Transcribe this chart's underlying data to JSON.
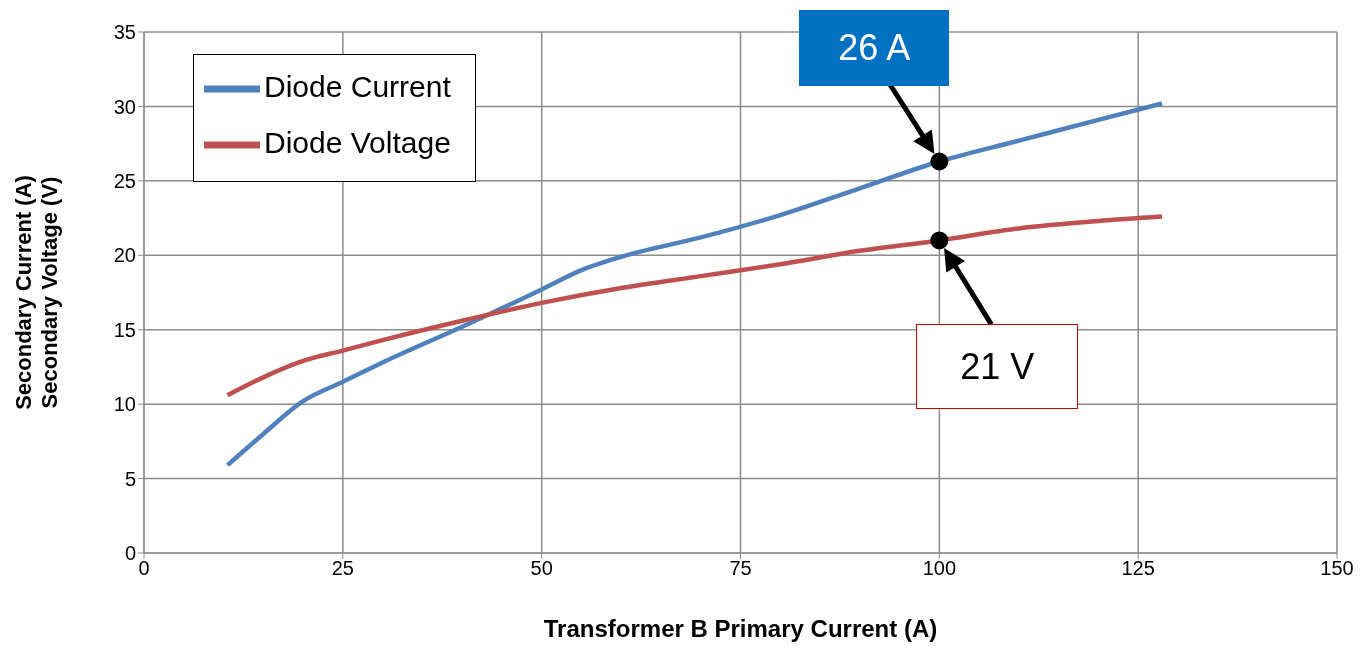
{
  "chart_data": {
    "type": "line",
    "xlabel": "Transformer B Primary Current (A)",
    "ylabel": "Secondary Current (A)\nSecondary Voltage (V)",
    "xlim": [
      0,
      150
    ],
    "xticks": [
      0,
      25,
      50,
      75,
      100,
      125,
      150
    ],
    "ylim": [
      0,
      35
    ],
    "yticks": [
      0,
      5,
      10,
      15,
      20,
      25,
      30,
      35
    ],
    "grid": true,
    "legend": "top left",
    "marker": "none",
    "line_style": "solid",
    "series": [
      {
        "name": "Diode Current",
        "color": "#4f81bd",
        "x": [
          10.5,
          15,
          20,
          25,
          30,
          40,
          50,
          55,
          60,
          70,
          80,
          90,
          100,
          110,
          120,
          128
        ],
        "values": [
          5.9,
          8,
          10.2,
          11.5,
          12.8,
          15.2,
          17.7,
          19,
          19.9,
          21.2,
          22.7,
          24.5,
          26.3,
          27.7,
          29.1,
          30.2
        ]
      },
      {
        "name": "Diode Voltage",
        "color": "#c0504d",
        "x": [
          10.5,
          15,
          20,
          25,
          30,
          40,
          50,
          60,
          70,
          80,
          90,
          100,
          110,
          120,
          128
        ],
        "values": [
          10.6,
          11.8,
          12.9,
          13.6,
          14.3,
          15.6,
          16.8,
          17.8,
          18.6,
          19.4,
          20.3,
          21,
          21.8,
          22.3,
          22.6
        ]
      }
    ],
    "annotations": [
      {
        "text": "26 A",
        "x": 100,
        "y": 26.3
      },
      {
        "text": "21 V",
        "x": 100,
        "y": 21
      }
    ]
  }
}
